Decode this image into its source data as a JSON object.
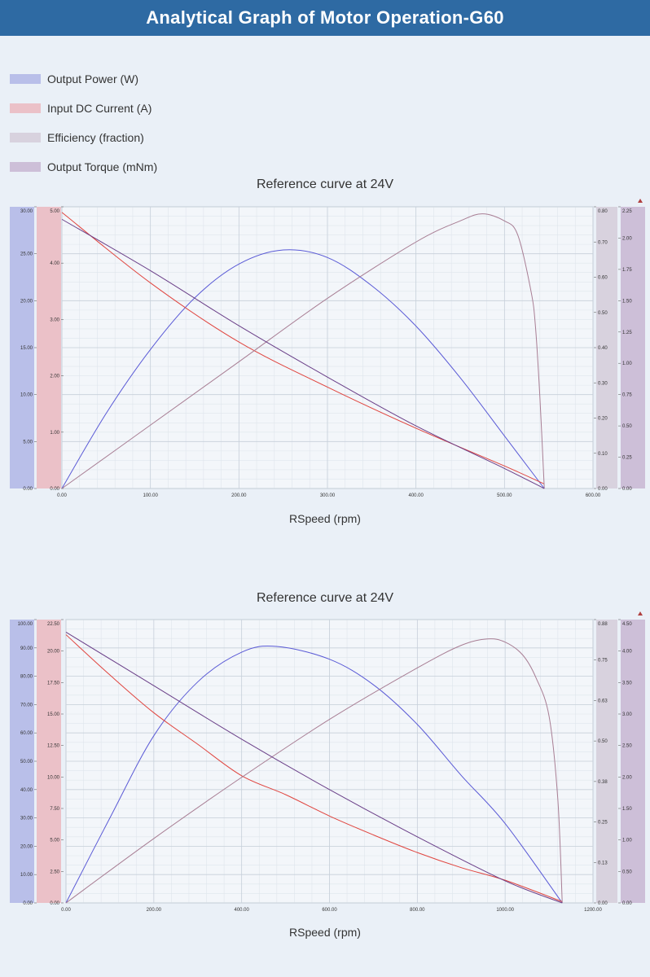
{
  "header": {
    "title": "Analytical Graph of Motor Operation-G60"
  },
  "legend": [
    {
      "label": "Output Power (W)",
      "color": "#b9bfe9"
    },
    {
      "label": "Input DC Current (A)",
      "color": "#ebc1c8"
    },
    {
      "label": "Efficiency (fraction)",
      "color": "#d8d2de"
    },
    {
      "label": "Output Torque (mNm)",
      "color": "#cdbfd8"
    }
  ],
  "chart_data": [
    {
      "type": "line",
      "title": "Reference curve at 24V",
      "xlabel": "RSpeed (rpm)",
      "xlim": [
        0,
        600
      ],
      "x_ticks": [
        "0.00",
        "100.00",
        "200.00",
        "300.00",
        "400.00",
        "500.00",
        "600.00"
      ],
      "grid": true,
      "axes": {
        "power": {
          "range": [
            0,
            30
          ],
          "ticks": [
            "0.00",
            "5.00",
            "10.00",
            "15.00",
            "20.00",
            "25.00",
            "30.00"
          ]
        },
        "current": {
          "range": [
            0,
            5
          ],
          "ticks": [
            "0.00",
            "1.00",
            "2.00",
            "3.00",
            "4.00",
            "5.00"
          ]
        },
        "efficiency": {
          "range": [
            0,
            0.8
          ],
          "ticks": [
            "0.00",
            "0.10",
            "0.20",
            "0.30",
            "0.40",
            "0.50",
            "0.60",
            "0.70",
            "0.80"
          ]
        },
        "torque": {
          "range": [
            0,
            2.25
          ],
          "ticks": [
            "0.00",
            "0.25",
            "0.50",
            "0.75",
            "1.00",
            "1.25",
            "1.50",
            "1.75",
            "2.00",
            "2.25"
          ]
        }
      },
      "series": [
        {
          "name": "Output Power (W)",
          "axis": "power",
          "color": "#5a5ad6",
          "x": [
            0,
            50,
            100,
            150,
            200,
            250,
            300,
            350,
            400,
            450,
            500,
            545
          ],
          "y": [
            0,
            8.0,
            14.8,
            20.3,
            23.9,
            25.4,
            24.6,
            21.6,
            17.3,
            11.8,
            5.6,
            0
          ]
        },
        {
          "name": "Input DC Current (A)",
          "axis": "current",
          "color": "#e0453f",
          "x": [
            0,
            100,
            200,
            300,
            400,
            500,
            545
          ],
          "y": [
            4.9,
            3.65,
            2.6,
            1.8,
            1.07,
            0.4,
            0.08
          ]
        },
        {
          "name": "Efficiency (fraction)",
          "axis": "efficiency",
          "color": "#a87e94",
          "x": [
            0,
            100,
            200,
            300,
            400,
            450,
            475,
            500,
            515,
            530,
            535,
            540,
            545
          ],
          "y": [
            0,
            0.18,
            0.36,
            0.54,
            0.7,
            0.76,
            0.78,
            0.76,
            0.72,
            0.56,
            0.46,
            0.26,
            0
          ]
        },
        {
          "name": "Output Torque (mNm)",
          "axis": "torque",
          "color": "#6a3f88",
          "x": [
            0,
            100,
            200,
            300,
            400,
            500,
            545
          ],
          "y": [
            2.15,
            1.74,
            1.3,
            0.89,
            0.5,
            0.16,
            0
          ]
        }
      ]
    },
    {
      "type": "line",
      "title": "Reference curve at 24V",
      "xlabel": "RSpeed (rpm)",
      "xlim": [
        0,
        1200
      ],
      "x_ticks": [
        "0.00",
        "200.00",
        "400.00",
        "600.00",
        "800.00",
        "1000.00",
        "1200.00"
      ],
      "grid": true,
      "axes": {
        "power": {
          "range": [
            0,
            100
          ],
          "ticks": [
            "0.00",
            "10.00",
            "20.00",
            "30.00",
            "40.00",
            "50.00",
            "60.00",
            "70.00",
            "80.00",
            "90.00",
            "100.00"
          ]
        },
        "current": {
          "range": [
            0,
            22.5
          ],
          "ticks": [
            "0.00",
            "2.50",
            "5.00",
            "7.50",
            "10.00",
            "12.50",
            "15.00",
            "17.50",
            "20.00",
            "22.50"
          ]
        },
        "efficiency": {
          "range": [
            0,
            0.88
          ],
          "ticks": [
            "0.00",
            "0.13",
            "0.25",
            "0.38",
            "0.50",
            "0.63",
            "0.75",
            "0.88"
          ]
        },
        "torque": {
          "range": [
            0,
            4.5
          ],
          "ticks": [
            "0.00",
            "0.50",
            "1.00",
            "1.50",
            "2.00",
            "2.50",
            "3.00",
            "3.50",
            "4.00",
            "4.50"
          ]
        }
      },
      "series": [
        {
          "name": "Output Power (W)",
          "axis": "power",
          "color": "#5a5ad6",
          "x": [
            0,
            100,
            200,
            300,
            400,
            480,
            600,
            700,
            800,
            900,
            1000,
            1130
          ],
          "y": [
            0,
            30.0,
            59.0,
            78.0,
            88.5,
            90.5,
            86.0,
            77.0,
            63.0,
            45.0,
            28.0,
            0
          ]
        },
        {
          "name": "Input DC Current (A)",
          "axis": "current",
          "color": "#e0453f",
          "x": [
            0,
            100,
            200,
            300,
            400,
            500,
            600,
            700,
            800,
            900,
            1000,
            1130
          ],
          "y": [
            21.3,
            18.1,
            15.1,
            12.6,
            10.1,
            8.6,
            6.9,
            5.4,
            4.0,
            2.8,
            1.8,
            0.1
          ]
        },
        {
          "name": "Efficiency (fraction)",
          "axis": "efficiency",
          "color": "#a87e94",
          "x": [
            0,
            200,
            400,
            600,
            800,
            900,
            960,
            1000,
            1040,
            1070,
            1100,
            1120,
            1130
          ],
          "y": [
            0,
            0.2,
            0.39,
            0.57,
            0.73,
            0.8,
            0.82,
            0.81,
            0.77,
            0.7,
            0.58,
            0.32,
            0
          ]
        },
        {
          "name": "Output Torque (mNm)",
          "axis": "torque",
          "color": "#6a3f88",
          "x": [
            0,
            200,
            400,
            600,
            800,
            1000,
            1130
          ],
          "y": [
            4.3,
            3.45,
            2.6,
            1.8,
            1.05,
            0.35,
            0
          ]
        }
      ]
    }
  ]
}
